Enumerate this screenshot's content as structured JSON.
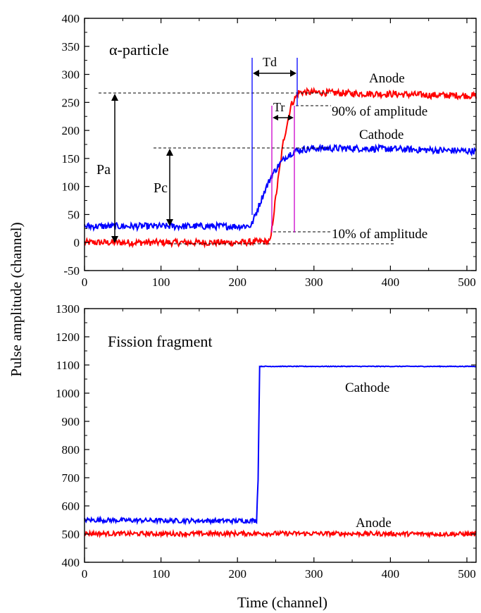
{
  "figure": {
    "ylabel": "Pulse amplitude (channel)",
    "xlabel": "Time (channel)"
  },
  "chart_data": [
    {
      "type": "line",
      "title": "α-particle",
      "xlabel": "Time (channel)",
      "ylabel": "Pulse amplitude (channel)",
      "xlim": [
        0,
        512
      ],
      "ylim": [
        -50,
        400
      ],
      "xticks": [
        0,
        100,
        200,
        300,
        400,
        500
      ],
      "yticks": [
        -50,
        0,
        50,
        100,
        150,
        200,
        250,
        300,
        350,
        400
      ],
      "grid": false,
      "colors": {
        "Anode": "#ff0000",
        "Cathode": "#0000ff"
      },
      "series": [
        {
          "name": "Anode",
          "color": "#ff0000",
          "x": [
            0,
            50,
            100,
            150,
            200,
            243,
            250,
            260,
            270,
            280,
            300,
            350,
            400,
            450,
            512
          ],
          "y": [
            0,
            0,
            0,
            0,
            0,
            2,
            80,
            180,
            245,
            268,
            268,
            266,
            265,
            263,
            262
          ]
        },
        {
          "name": "Cathode",
          "color": "#0000ff",
          "x": [
            0,
            50,
            100,
            150,
            200,
            218,
            225,
            235,
            245,
            255,
            265,
            275,
            285,
            300,
            350,
            400,
            450,
            512
          ],
          "y": [
            29,
            29,
            29,
            29,
            29,
            30,
            55,
            90,
            120,
            140,
            155,
            163,
            166,
            168,
            168,
            167,
            165,
            163
          ]
        }
      ],
      "annotations": {
        "series_labels": [
          "Anode",
          "Cathode"
        ],
        "Td": "Td",
        "Tr": "Tr",
        "Pa": "Pa",
        "Pc": "Pc",
        "pct90": "90% of amplitude",
        "pct10": "10% of amplitude"
      }
    },
    {
      "type": "line",
      "title": "Fission fragment",
      "xlabel": "Time (channel)",
      "ylabel": "Pulse amplitude (channel)",
      "xlim": [
        0,
        512
      ],
      "ylim": [
        400,
        1300
      ],
      "xticks": [
        0,
        100,
        200,
        300,
        400,
        500
      ],
      "yticks": [
        400,
        500,
        600,
        700,
        800,
        900,
        1000,
        1100,
        1200,
        1300
      ],
      "grid": false,
      "colors": {
        "Anode": "#ff0000",
        "Cathode": "#0000ff"
      },
      "series": [
        {
          "name": "Cathode",
          "color": "#0000ff",
          "x": [
            0,
            100,
            200,
            225,
            227,
            229,
            300,
            400,
            512
          ],
          "y": [
            550,
            548,
            547,
            548,
            700,
            1095,
            1095,
            1095,
            1095
          ]
        },
        {
          "name": "Anode",
          "color": "#ff0000",
          "x": [
            0,
            100,
            200,
            300,
            400,
            512
          ],
          "y": [
            502,
            501,
            502,
            502,
            501,
            500
          ]
        }
      ],
      "annotations": {
        "series_labels": [
          "Cathode",
          "Anode"
        ]
      }
    }
  ]
}
